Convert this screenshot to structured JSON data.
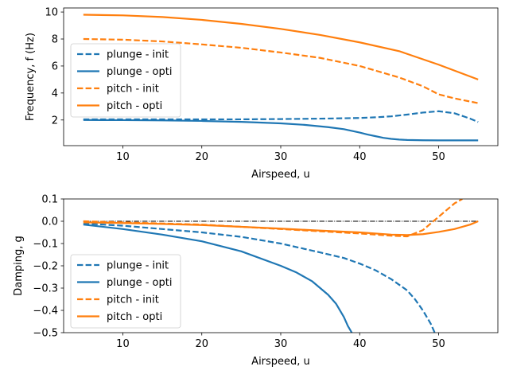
{
  "chart_data": [
    {
      "type": "line",
      "xlabel": "Airspeed, u",
      "ylabel": "Frequency, f (Hz)",
      "xlim": [
        2.5,
        57.5
      ],
      "ylim": [
        0.1,
        10.3
      ],
      "xticks": [
        10,
        20,
        30,
        40,
        50
      ],
      "yticks": [
        2,
        4,
        6,
        8,
        10
      ],
      "legend_position": "center-left",
      "series": [
        {
          "name": "plunge - init",
          "color": "#1f77b4",
          "dash": "dashed",
          "x": [
            5,
            10,
            15,
            20,
            25,
            30,
            35,
            40,
            42,
            44,
            46,
            48,
            50,
            52,
            54,
            55
          ],
          "y": [
            2.05,
            2.05,
            2.05,
            2.05,
            2.05,
            2.07,
            2.1,
            2.15,
            2.2,
            2.27,
            2.4,
            2.55,
            2.65,
            2.5,
            2.1,
            1.85
          ]
        },
        {
          "name": "plunge - opti",
          "color": "#1f77b4",
          "dash": "solid",
          "x": [
            5,
            10,
            15,
            20,
            25,
            30,
            33,
            36,
            38,
            40,
            41,
            42,
            43,
            44,
            45,
            46,
            48,
            50,
            55
          ],
          "y": [
            2.0,
            1.99,
            1.97,
            1.93,
            1.86,
            1.75,
            1.64,
            1.47,
            1.32,
            1.07,
            0.92,
            0.8,
            0.68,
            0.6,
            0.55,
            0.52,
            0.5,
            0.49,
            0.49
          ]
        },
        {
          "name": "pitch - init",
          "color": "#ff7f0e",
          "dash": "dashed",
          "x": [
            5,
            10,
            15,
            20,
            25,
            30,
            35,
            40,
            45,
            48,
            50,
            52,
            55
          ],
          "y": [
            8.0,
            7.95,
            7.82,
            7.6,
            7.35,
            7.0,
            6.6,
            6.0,
            5.15,
            4.5,
            3.9,
            3.6,
            3.25
          ]
        },
        {
          "name": "pitch - opti",
          "color": "#ff7f0e",
          "dash": "solid",
          "x": [
            5,
            10,
            15,
            20,
            25,
            30,
            35,
            40,
            45,
            50,
            55
          ],
          "y": [
            9.8,
            9.75,
            9.63,
            9.42,
            9.12,
            8.75,
            8.3,
            7.75,
            7.1,
            6.1,
            5.0
          ]
        }
      ]
    },
    {
      "type": "line",
      "xlabel": "Airspeed, u",
      "ylabel": "Damping, g",
      "xlim": [
        2.5,
        57.5
      ],
      "ylim": [
        -0.5,
        0.1
      ],
      "xticks": [
        10,
        20,
        30,
        40,
        50
      ],
      "yticks": [
        0.1,
        0.0,
        -0.1,
        -0.2,
        -0.3,
        -0.4,
        -0.5
      ],
      "ytick_labels": [
        "0.1",
        "0.0",
        "−0.1",
        "−0.2",
        "−0.3",
        "−0.4",
        "−0.5"
      ],
      "legend_position": "lower-left",
      "reference_line": {
        "y": 0.0,
        "x": [
          5,
          55
        ],
        "style": "dash-dot",
        "color": "#000000"
      },
      "series": [
        {
          "name": "plunge - init",
          "color": "#1f77b4",
          "dash": "dashed",
          "x": [
            5,
            10,
            15,
            20,
            25,
            30,
            35,
            38,
            40,
            42,
            44,
            46,
            47,
            48,
            49,
            49.5
          ],
          "y": [
            -0.01,
            -0.02,
            -0.035,
            -0.05,
            -0.07,
            -0.1,
            -0.14,
            -0.165,
            -0.19,
            -0.22,
            -0.26,
            -0.31,
            -0.35,
            -0.4,
            -0.46,
            -0.5
          ]
        },
        {
          "name": "plunge - opti",
          "color": "#1f77b4",
          "dash": "solid",
          "x": [
            5,
            10,
            15,
            20,
            25,
            30,
            32,
            34,
            36,
            37,
            38,
            38.5,
            39
          ],
          "y": [
            -0.015,
            -0.035,
            -0.06,
            -0.09,
            -0.135,
            -0.2,
            -0.23,
            -0.27,
            -0.33,
            -0.37,
            -0.43,
            -0.47,
            -0.5
          ]
        },
        {
          "name": "pitch - init",
          "color": "#ff7f0e",
          "dash": "dashed",
          "x": [
            5,
            10,
            15,
            20,
            25,
            30,
            35,
            40,
            44,
            46,
            48,
            50,
            52,
            53
          ],
          "y": [
            0.0,
            -0.005,
            -0.01,
            -0.015,
            -0.025,
            -0.035,
            -0.045,
            -0.055,
            -0.065,
            -0.068,
            -0.04,
            0.02,
            0.08,
            0.1
          ]
        },
        {
          "name": "pitch - opti",
          "color": "#ff7f0e",
          "dash": "solid",
          "x": [
            5,
            10,
            15,
            20,
            25,
            30,
            35,
            40,
            44,
            46,
            48,
            50,
            52,
            54,
            55
          ],
          "y": [
            -0.005,
            -0.008,
            -0.012,
            -0.017,
            -0.025,
            -0.033,
            -0.042,
            -0.05,
            -0.06,
            -0.062,
            -0.058,
            -0.048,
            -0.035,
            -0.015,
            0.0
          ]
        }
      ]
    }
  ]
}
